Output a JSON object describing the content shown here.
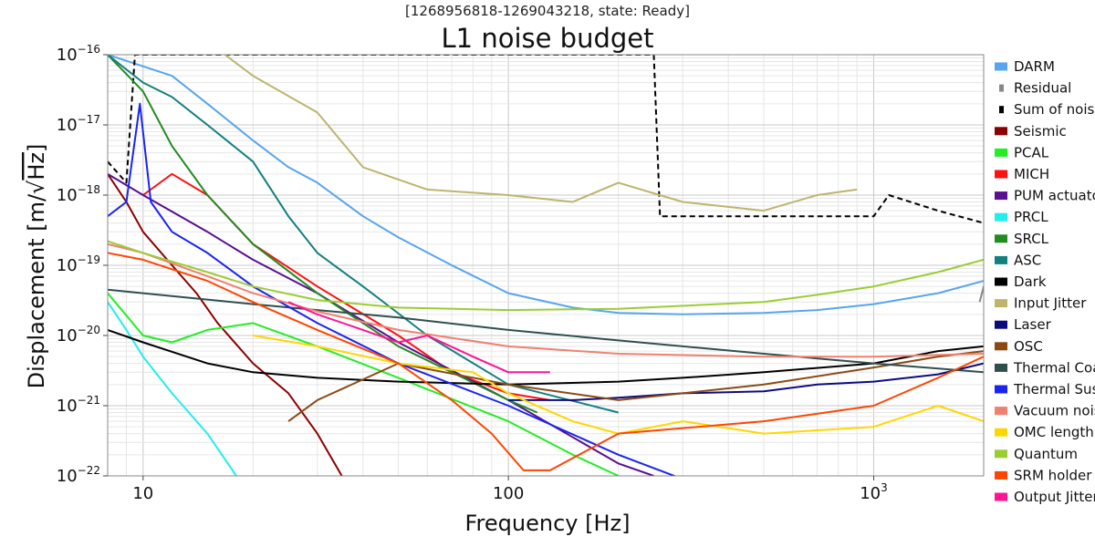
{
  "header": {
    "supertitle": "[1268956818-1269043218, state: Ready]",
    "title": "L1 noise budget"
  },
  "colors": {
    "DARM": "#55a6f0",
    "Residual": "#888888",
    "Sum of noises": "#000000",
    "Seismic": "#8b0000",
    "PCAL": "#22ee22",
    "MICH": "#ff1111",
    "PUM actuator": "#5a1090",
    "PRCL": "#22eeee",
    "SRCL": "#228b22",
    "ASC": "#138080",
    "Dark": "#000000",
    "Input Jitter": "#bdb56e",
    "Laser": "#0b0b80",
    "OSC": "#8b4a14",
    "Thermal Coating": "#2f4f4f",
    "Thermal Suspension": "#1a24f0",
    "Vacuum noise": "#f08070",
    "OMC length": "#ffd700",
    "Quantum": "#9acd32",
    "SRM holder": "#ff4500",
    "Output Jitter": "#ff1493"
  },
  "chart_data": {
    "type": "line",
    "title": "L1 noise budget",
    "subtitle": "[1268956818-1269043218, state: Ready]",
    "xlabel": "Frequency [Hz]",
    "ylabel_prefix": "Displacement [m/",
    "ylabel_radical": "Hz",
    "ylabel_suffix": "]",
    "xscale": "log",
    "yscale": "log",
    "xlim": [
      8,
      2000
    ],
    "ylim": [
      1e-22,
      1e-16
    ],
    "grid": true,
    "legend_position": "right, outside",
    "x_ticks": [
      {
        "value": 10,
        "mantissa": "10",
        "exp": ""
      },
      {
        "value": 100,
        "mantissa": "100",
        "exp": ""
      },
      {
        "value": 1000,
        "mantissa": "10",
        "exp": "3"
      }
    ],
    "y_ticks": [
      {
        "value": 1e-16,
        "mantissa": "10",
        "exp": "−16"
      },
      {
        "value": 1e-17,
        "mantissa": "10",
        "exp": "−17"
      },
      {
        "value": 1e-18,
        "mantissa": "10",
        "exp": "−18"
      },
      {
        "value": 1e-19,
        "mantissa": "10",
        "exp": "−19"
      },
      {
        "value": 1e-20,
        "mantissa": "10",
        "exp": "−20"
      },
      {
        "value": 1e-21,
        "mantissa": "10",
        "exp": "−21"
      },
      {
        "value": 1e-22,
        "mantissa": "10",
        "exp": "−22"
      }
    ],
    "series": [
      {
        "name": "DARM",
        "style": "solid",
        "points": [
          [
            8,
            1e-16
          ],
          [
            12,
            5e-17
          ],
          [
            15,
            2e-17
          ],
          [
            20,
            6e-18
          ],
          [
            25,
            2.5e-18
          ],
          [
            30,
            1.5e-18
          ],
          [
            40,
            5e-19
          ],
          [
            50,
            2.5e-19
          ],
          [
            70,
            1e-19
          ],
          [
            100,
            4e-20
          ],
          [
            150,
            2.5e-20
          ],
          [
            200,
            2.1e-20
          ],
          [
            300,
            2e-20
          ],
          [
            500,
            2.1e-20
          ],
          [
            700,
            2.3e-20
          ],
          [
            1000,
            2.8e-20
          ],
          [
            1500,
            4e-20
          ],
          [
            2000,
            6e-20
          ]
        ]
      },
      {
        "name": "Residual",
        "style": "solid",
        "points": [
          [
            1950,
            3e-20
          ],
          [
            2000,
            5e-20
          ]
        ]
      },
      {
        "name": "Sum of noises",
        "style": "dashed",
        "points": [
          [
            8,
            3e-18
          ],
          [
            9,
            1.5e-18
          ],
          [
            9.5,
            1e-16
          ],
          [
            250,
            1e-16
          ],
          [
            260,
            5e-19
          ],
          [
            500,
            5e-19
          ],
          [
            1000,
            5e-19
          ],
          [
            1100,
            1e-18
          ],
          [
            1500,
            6e-19
          ],
          [
            2000,
            4e-19
          ]
        ]
      },
      {
        "name": "Seismic",
        "style": "solid",
        "points": [
          [
            8,
            2e-18
          ],
          [
            9,
            8e-19
          ],
          [
            10,
            3e-19
          ],
          [
            12,
            1e-19
          ],
          [
            14,
            4e-20
          ],
          [
            16,
            1.5e-20
          ],
          [
            20,
            4e-21
          ],
          [
            25,
            1.5e-21
          ],
          [
            30,
            4e-22
          ],
          [
            35,
            1e-22
          ]
        ]
      },
      {
        "name": "PCAL",
        "style": "solid",
        "points": [
          [
            8,
            4e-20
          ],
          [
            10,
            1e-20
          ],
          [
            12,
            8e-21
          ],
          [
            15,
            1.2e-20
          ],
          [
            20,
            1.5e-20
          ],
          [
            30,
            7e-21
          ],
          [
            50,
            2.5e-21
          ],
          [
            100,
            6e-22
          ],
          [
            150,
            2e-22
          ],
          [
            200,
            1e-22
          ]
        ]
      },
      {
        "name": "MICH",
        "style": "solid",
        "points": [
          [
            10,
            1e-18
          ],
          [
            12,
            2e-18
          ],
          [
            15,
            1e-18
          ],
          [
            20,
            2e-19
          ],
          [
            30,
            5e-20
          ],
          [
            50,
            1e-20
          ],
          [
            70,
            3e-21
          ],
          [
            100,
            1.5e-21
          ],
          [
            130,
            1.2e-21
          ]
        ]
      },
      {
        "name": "PUM actuator",
        "style": "solid",
        "points": [
          [
            8,
            2e-18
          ],
          [
            10,
            1e-18
          ],
          [
            15,
            3e-19
          ],
          [
            20,
            1.2e-19
          ],
          [
            30,
            4e-20
          ],
          [
            50,
            8e-21
          ],
          [
            100,
            1.2e-21
          ],
          [
            200,
            1.5e-22
          ],
          [
            250,
            1e-22
          ]
        ]
      },
      {
        "name": "PRCL",
        "style": "solid",
        "points": [
          [
            8,
            3e-20
          ],
          [
            9,
            1.2e-20
          ],
          [
            10,
            5e-21
          ],
          [
            12,
            1.5e-21
          ],
          [
            15,
            4e-22
          ],
          [
            18,
            1e-22
          ]
        ]
      },
      {
        "name": "SRCL",
        "style": "solid",
        "points": [
          [
            8,
            1e-16
          ],
          [
            10,
            3e-17
          ],
          [
            12,
            5e-18
          ],
          [
            15,
            1e-18
          ],
          [
            20,
            2e-19
          ],
          [
            30,
            4e-20
          ],
          [
            50,
            7e-21
          ],
          [
            70,
            3e-21
          ],
          [
            100,
            1.2e-21
          ],
          [
            120,
            8e-22
          ]
        ]
      },
      {
        "name": "ASC",
        "style": "solid",
        "points": [
          [
            8,
            1e-16
          ],
          [
            10,
            4e-17
          ],
          [
            12,
            2.5e-17
          ],
          [
            15,
            1e-17
          ],
          [
            20,
            3e-18
          ],
          [
            25,
            5e-19
          ],
          [
            30,
            1.5e-19
          ],
          [
            40,
            5e-20
          ],
          [
            60,
            1e-20
          ],
          [
            100,
            2e-21
          ],
          [
            200,
            8e-22
          ]
        ]
      },
      {
        "name": "Dark",
        "style": "solid",
        "points": [
          [
            8,
            1.2e-20
          ],
          [
            10,
            8e-21
          ],
          [
            15,
            4e-21
          ],
          [
            20,
            3e-21
          ],
          [
            30,
            2.5e-21
          ],
          [
            50,
            2.2e-21
          ],
          [
            100,
            2e-21
          ],
          [
            200,
            2.2e-21
          ],
          [
            300,
            2.5e-21
          ],
          [
            500,
            3e-21
          ],
          [
            1000,
            4e-21
          ],
          [
            1500,
            6e-21
          ],
          [
            2000,
            7e-21
          ]
        ]
      },
      {
        "name": "Input Jitter",
        "style": "solid",
        "points": [
          [
            16,
            1.2e-16
          ],
          [
            20,
            5e-17
          ],
          [
            30,
            1.5e-17
          ],
          [
            40,
            2.5e-18
          ],
          [
            60,
            1.2e-18
          ],
          [
            100,
            1e-18
          ],
          [
            150,
            8e-19
          ],
          [
            200,
            1.5e-18
          ],
          [
            300,
            8e-19
          ],
          [
            500,
            6e-19
          ],
          [
            700,
            1e-18
          ],
          [
            900,
            1.2e-18
          ]
        ]
      },
      {
        "name": "Laser",
        "style": "solid",
        "points": [
          [
            100,
            1.2e-21
          ],
          [
            150,
            1.2e-21
          ],
          [
            200,
            1.3e-21
          ],
          [
            300,
            1.5e-21
          ],
          [
            500,
            1.6e-21
          ],
          [
            700,
            2e-21
          ],
          [
            1000,
            2.2e-21
          ],
          [
            1500,
            2.8e-21
          ],
          [
            2000,
            4e-21
          ]
        ]
      },
      {
        "name": "OSC",
        "style": "solid",
        "points": [
          [
            25,
            6e-22
          ],
          [
            30,
            1.2e-21
          ],
          [
            50,
            4e-21
          ],
          [
            100,
            2e-21
          ],
          [
            200,
            1.2e-21
          ],
          [
            300,
            1.5e-21
          ],
          [
            500,
            2e-21
          ],
          [
            1000,
            3.5e-21
          ],
          [
            1500,
            5e-21
          ],
          [
            2000,
            6e-21
          ]
        ]
      },
      {
        "name": "Thermal Coating",
        "style": "solid",
        "points": [
          [
            8,
            4.5e-20
          ],
          [
            10,
            4e-20
          ],
          [
            20,
            2.8e-20
          ],
          [
            50,
            1.8e-20
          ],
          [
            100,
            1.2e-20
          ],
          [
            200,
            8.5e-21
          ],
          [
            500,
            5.5e-21
          ],
          [
            1000,
            4e-21
          ],
          [
            2000,
            3e-21
          ]
        ]
      },
      {
        "name": "Thermal Suspension",
        "style": "solid",
        "points": [
          [
            8,
            5e-19
          ],
          [
            9,
            8e-19
          ],
          [
            9.8,
            2e-17
          ],
          [
            10.5,
            8e-19
          ],
          [
            12,
            3e-19
          ],
          [
            15,
            1.5e-19
          ],
          [
            20,
            5e-20
          ],
          [
            30,
            1.5e-20
          ],
          [
            50,
            4e-21
          ],
          [
            100,
            1e-21
          ],
          [
            200,
            2e-22
          ],
          [
            300,
            9e-23
          ]
        ]
      },
      {
        "name": "Vacuum noise",
        "style": "solid",
        "points": [
          [
            8,
            2e-19
          ],
          [
            10,
            1.5e-19
          ],
          [
            15,
            7e-20
          ],
          [
            20,
            4e-20
          ],
          [
            30,
            2.2e-20
          ],
          [
            50,
            1.2e-20
          ],
          [
            100,
            7e-21
          ],
          [
            200,
            5.5e-21
          ],
          [
            500,
            5e-21
          ],
          [
            1000,
            5e-21
          ],
          [
            2000,
            5.5e-21
          ]
        ]
      },
      {
        "name": "OMC length",
        "style": "solid",
        "points": [
          [
            20,
            1e-20
          ],
          [
            30,
            7e-21
          ],
          [
            50,
            4e-21
          ],
          [
            80,
            3e-21
          ],
          [
            100,
            1.5e-21
          ],
          [
            150,
            6e-22
          ],
          [
            200,
            4e-22
          ],
          [
            300,
            6e-22
          ],
          [
            500,
            4e-22
          ],
          [
            1000,
            5e-22
          ],
          [
            1500,
            1e-21
          ],
          [
            2000,
            6e-22
          ]
        ]
      },
      {
        "name": "Quantum",
        "style": "solid",
        "points": [
          [
            8,
            2.2e-19
          ],
          [
            10,
            1.5e-19
          ],
          [
            15,
            8e-20
          ],
          [
            20,
            5e-20
          ],
          [
            30,
            3.2e-20
          ],
          [
            50,
            2.5e-20
          ],
          [
            100,
            2.3e-20
          ],
          [
            200,
            2.4e-20
          ],
          [
            500,
            3e-20
          ],
          [
            700,
            3.8e-20
          ],
          [
            1000,
            5e-20
          ],
          [
            1500,
            8e-20
          ],
          [
            2000,
            1.2e-19
          ]
        ]
      },
      {
        "name": "SRM holder",
        "style": "solid",
        "points": [
          [
            8,
            1.5e-19
          ],
          [
            10,
            1.2e-19
          ],
          [
            15,
            6e-20
          ],
          [
            20,
            3e-20
          ],
          [
            30,
            1.2e-20
          ],
          [
            50,
            4e-21
          ],
          [
            70,
            1.2e-21
          ],
          [
            90,
            4e-22
          ],
          [
            110,
            1.2e-22
          ],
          [
            130,
            1.2e-22
          ],
          [
            200,
            4e-22
          ],
          [
            500,
            6e-22
          ],
          [
            1000,
            1e-21
          ],
          [
            1500,
            2.5e-21
          ],
          [
            2000,
            5e-21
          ]
        ]
      },
      {
        "name": "Output Jitter",
        "style": "solid",
        "points": [
          [
            25,
            3e-20
          ],
          [
            30,
            2e-20
          ],
          [
            40,
            1.2e-20
          ],
          [
            50,
            8e-21
          ],
          [
            60,
            1e-20
          ],
          [
            80,
            5e-21
          ],
          [
            100,
            3e-21
          ],
          [
            130,
            3e-21
          ]
        ]
      }
    ]
  }
}
